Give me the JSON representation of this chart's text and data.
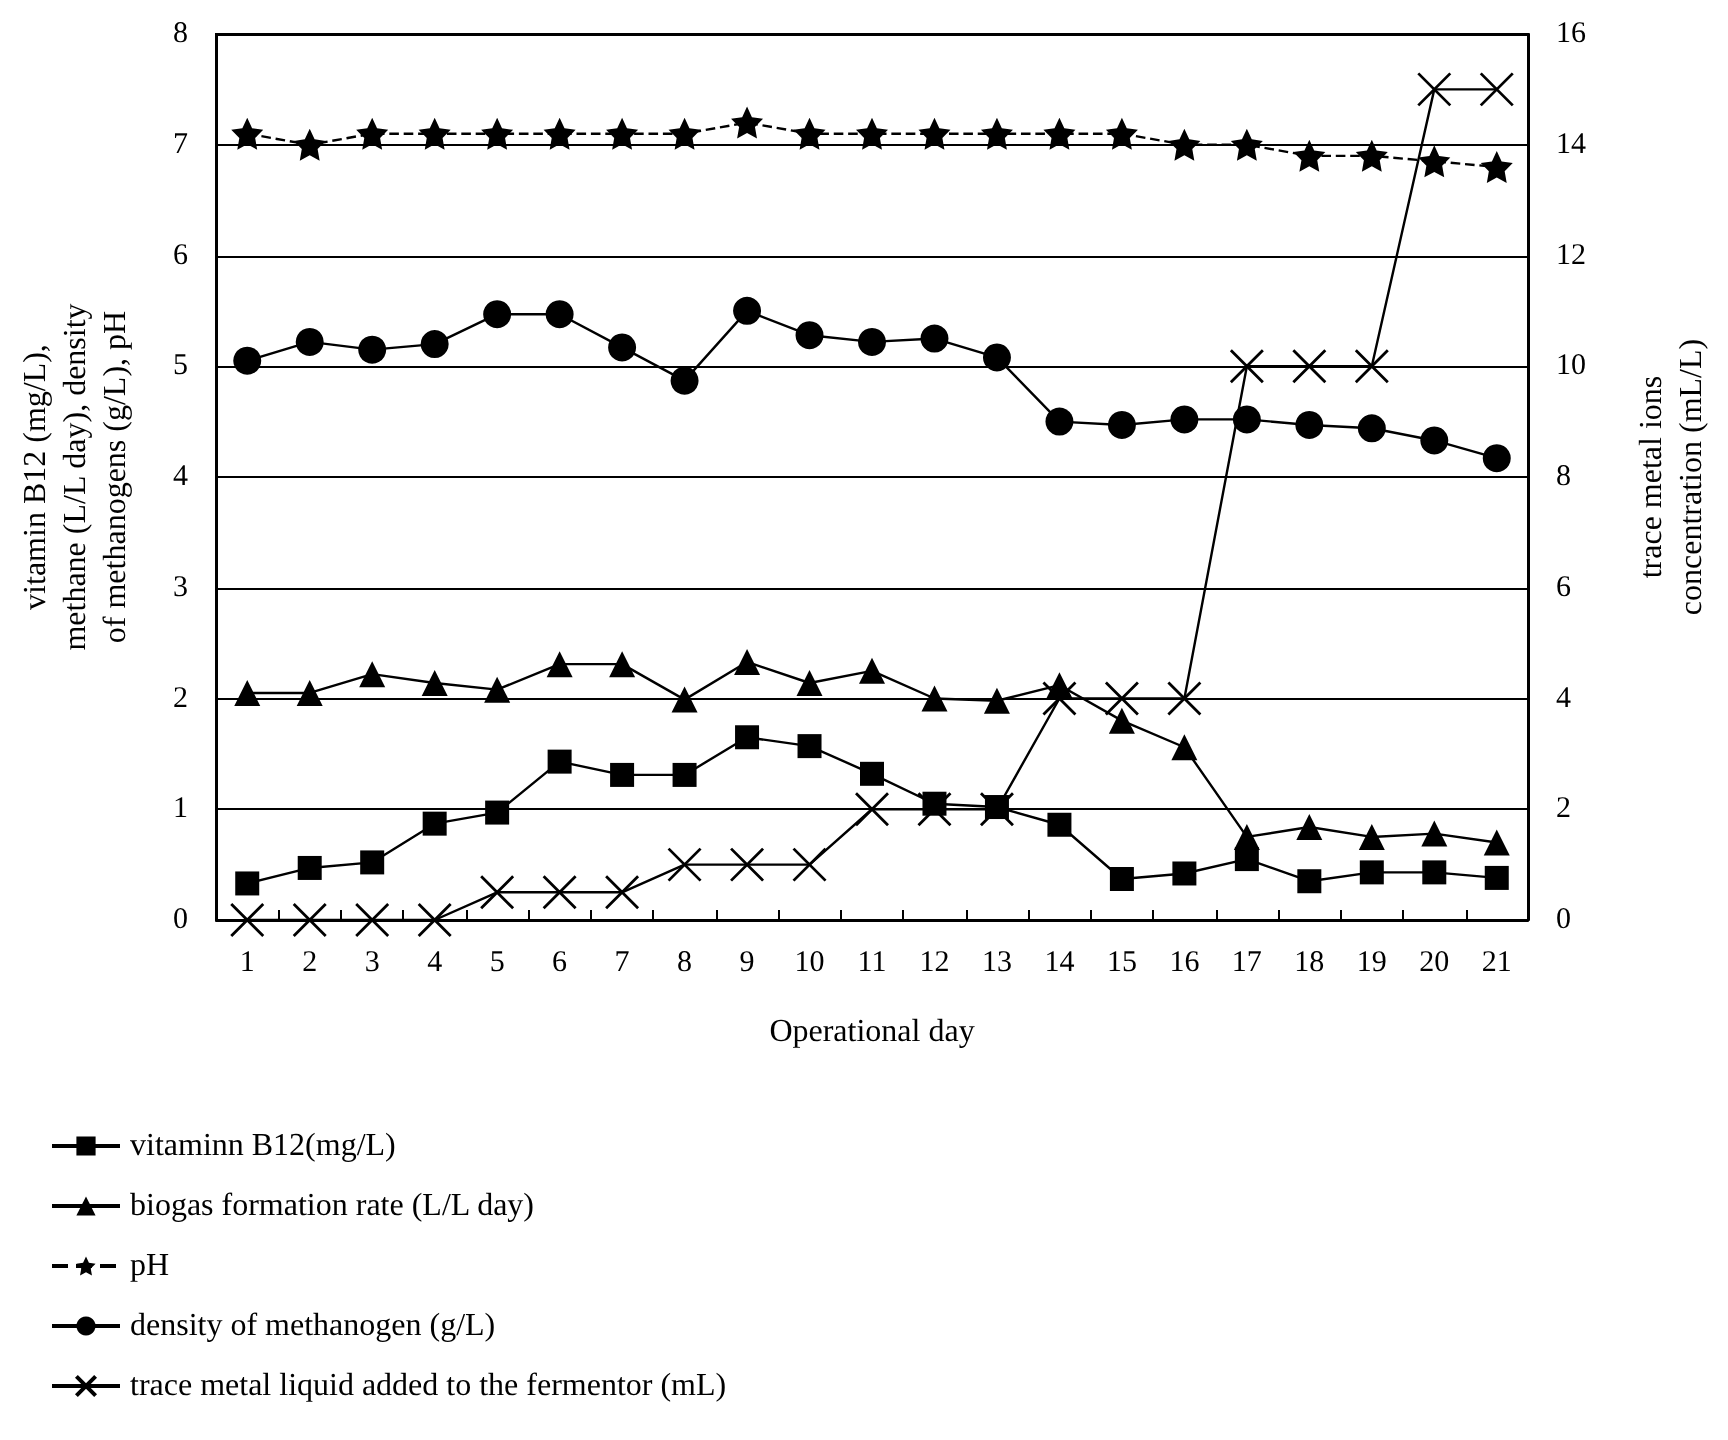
{
  "chart_data": {
    "type": "line",
    "xlabel": "Operational day",
    "ylabel": "vitamin B12 (mg/L),\nmethane (L/L day), density\nof methanogens (g/L), pH",
    "y2label": "trace metal ions\nconcentration (mL/L)",
    "categories": [
      "1",
      "2",
      "3",
      "4",
      "5",
      "6",
      "7",
      "8",
      "9",
      "10",
      "11",
      "12",
      "13",
      "14",
      "15",
      "16",
      "17",
      "18",
      "19",
      "20",
      "21"
    ],
    "series": [
      {
        "name": "vitaminn B12(mg/L)",
        "color": "#000000",
        "marker": "square",
        "values": [
          0.33,
          0.47,
          0.52,
          0.87,
          0.97,
          1.43,
          1.31,
          1.31,
          1.65,
          1.57,
          1.32,
          1.05,
          1.02,
          0.86,
          0.37,
          0.42,
          0.55,
          0.35,
          0.43,
          0.43,
          0.38
        ]
      },
      {
        "name": "biogas formation rate (L/L day)",
        "color": "#000000",
        "marker": "triangle",
        "values": [
          2.05,
          2.05,
          2.22,
          2.14,
          2.08,
          2.31,
          2.31,
          1.99,
          2.33,
          2.14,
          2.25,
          2.0,
          1.98,
          2.12,
          1.8,
          1.56,
          0.75,
          0.84,
          0.75,
          0.78,
          0.7
        ]
      },
      {
        "name": "pH",
        "color": "#000000",
        "marker": "star",
        "line_style": "dashed",
        "values": [
          7.1,
          7.0,
          7.1,
          7.1,
          7.1,
          7.1,
          7.1,
          7.1,
          7.2,
          7.1,
          7.1,
          7.1,
          7.1,
          7.1,
          7.1,
          7.0,
          7.0,
          6.9,
          6.9,
          6.85,
          6.8
        ]
      },
      {
        "name": "density of methanogen (g/L)",
        "color": "#000000",
        "marker": "circle",
        "values": [
          5.05,
          5.22,
          5.15,
          5.2,
          5.47,
          5.47,
          5.17,
          4.87,
          5.5,
          5.28,
          5.22,
          5.25,
          5.08,
          4.5,
          4.47,
          4.52,
          4.52,
          4.47,
          4.44,
          4.33,
          4.17
        ]
      },
      {
        "name": "trace metal liquid added to the fermentor (mL)",
        "color": "#000000",
        "marker": "cross",
        "axis": "y2",
        "values": [
          0,
          0,
          0,
          0,
          0.5,
          0.5,
          0.5,
          1,
          1,
          1,
          2,
          2,
          2,
          4,
          4,
          4,
          10,
          10,
          10,
          15,
          15
        ]
      }
    ],
    "ylim": [
      0,
      8
    ],
    "yticks": [
      0,
      1,
      2,
      3,
      4,
      5,
      6,
      7,
      8
    ],
    "y2lim": [
      0,
      16
    ],
    "y2ticks": [
      0,
      2,
      4,
      6,
      8,
      10,
      12,
      14,
      16
    ],
    "grid": "y",
    "legend": "bottom"
  }
}
